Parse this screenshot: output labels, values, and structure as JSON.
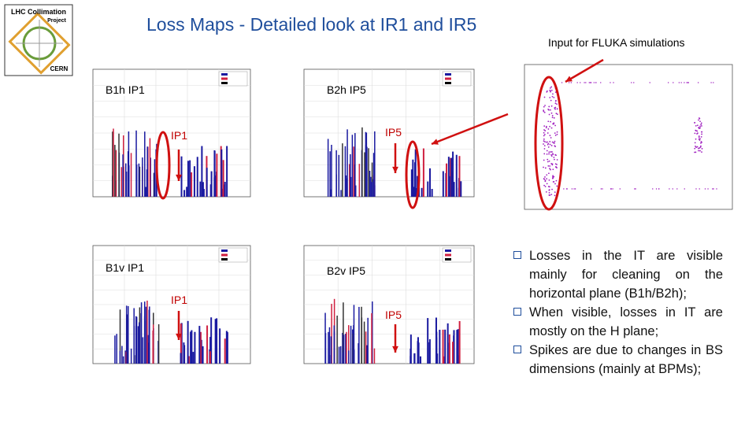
{
  "header": {
    "title": "Loss Maps - Detailed look at IR1 and IR5"
  },
  "logo": {
    "line1": "LHC Collimation",
    "line2": "Project",
    "line3": "CERN"
  },
  "fluka": {
    "caption": "Input for FLUKA simulations"
  },
  "plots": [
    {
      "label": "B1h IP1",
      "marker": "IP1"
    },
    {
      "label": "B2h IP5",
      "marker": "IP5"
    },
    {
      "label": "B1v IP1",
      "marker": "IP1"
    },
    {
      "label": "B2v IP5",
      "marker": "IP5"
    }
  ],
  "bullets": [
    "Losses in the IT are visible mainly for cleaning on the horizontal plane (B1h/B2h);",
    "When visible, losses in IT are mostly on the H plane;",
    "Spikes are due to changes in BS dimensions (mainly at BPMs);"
  ]
}
